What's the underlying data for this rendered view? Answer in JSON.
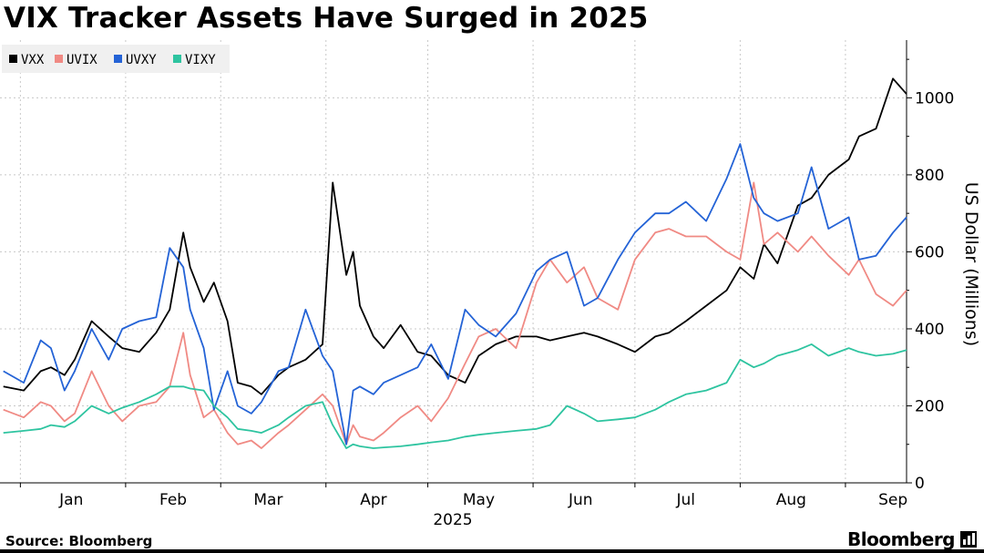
{
  "title": "VIX Tracker Assets Have Surged in 2025",
  "source": "Source: Bloomberg",
  "brand": "Bloomberg",
  "chart_data": {
    "type": "line",
    "ylabel": "US Dollar (Millions)",
    "ylim": [
      0,
      1150
    ],
    "yticks": [
      0,
      200,
      400,
      600,
      800,
      1000
    ],
    "xlim": [
      "2024-12-26",
      "2025-09-19"
    ],
    "month_labels": [
      {
        "label": "Jan",
        "date": "2025-01-16"
      },
      {
        "label": "Feb",
        "date": "2025-02-15"
      },
      {
        "label": "Mar",
        "date": "2025-03-15"
      },
      {
        "label": "Apr",
        "date": "2025-04-15"
      },
      {
        "label": "May",
        "date": "2025-05-16"
      },
      {
        "label": "Jun",
        "date": "2025-06-15"
      },
      {
        "label": "Jul",
        "date": "2025-07-16"
      },
      {
        "label": "Aug",
        "date": "2025-08-16"
      },
      {
        "label": "Sep",
        "date": "2025-09-15"
      }
    ],
    "year_label": "2025",
    "legend_position": "top-left",
    "grid": true,
    "series": [
      {
        "name": "VXX",
        "color": "#000000",
        "x": [
          "2024-12-27",
          "2025-01-02",
          "2025-01-07",
          "2025-01-10",
          "2025-01-14",
          "2025-01-17",
          "2025-01-22",
          "2025-01-27",
          "2025-01-31",
          "2025-02-05",
          "2025-02-10",
          "2025-02-14",
          "2025-02-18",
          "2025-02-20",
          "2025-02-24",
          "2025-02-27",
          "2025-03-03",
          "2025-03-06",
          "2025-03-10",
          "2025-03-13",
          "2025-03-18",
          "2025-03-21",
          "2025-03-26",
          "2025-03-31",
          "2025-04-03",
          "2025-04-07",
          "2025-04-09",
          "2025-04-11",
          "2025-04-15",
          "2025-04-18",
          "2025-04-23",
          "2025-04-28",
          "2025-05-02",
          "2025-05-07",
          "2025-05-12",
          "2025-05-16",
          "2025-05-21",
          "2025-05-27",
          "2025-06-02",
          "2025-06-06",
          "2025-06-11",
          "2025-06-16",
          "2025-06-20",
          "2025-06-26",
          "2025-07-01",
          "2025-07-07",
          "2025-07-11",
          "2025-07-16",
          "2025-07-22",
          "2025-07-28",
          "2025-08-01",
          "2025-08-05",
          "2025-08-08",
          "2025-08-12",
          "2025-08-18",
          "2025-08-22",
          "2025-08-27",
          "2025-09-02",
          "2025-09-05",
          "2025-09-10",
          "2025-09-15",
          "2025-09-19"
        ],
        "values": [
          250,
          240,
          290,
          300,
          280,
          320,
          420,
          380,
          350,
          340,
          390,
          450,
          650,
          560,
          470,
          520,
          420,
          260,
          250,
          230,
          280,
          300,
          320,
          360,
          780,
          540,
          600,
          460,
          380,
          350,
          410,
          340,
          330,
          280,
          260,
          330,
          360,
          380,
          380,
          370,
          380,
          390,
          380,
          360,
          340,
          380,
          390,
          420,
          460,
          500,
          560,
          530,
          620,
          570,
          720,
          740,
          800,
          840,
          900,
          920,
          1050,
          1010
        ]
      },
      {
        "name": "UVIX",
        "color": "#f08a84",
        "x": [
          "2024-12-27",
          "2025-01-02",
          "2025-01-07",
          "2025-01-10",
          "2025-01-14",
          "2025-01-17",
          "2025-01-22",
          "2025-01-27",
          "2025-01-31",
          "2025-02-05",
          "2025-02-10",
          "2025-02-14",
          "2025-02-18",
          "2025-02-20",
          "2025-02-24",
          "2025-02-27",
          "2025-03-03",
          "2025-03-06",
          "2025-03-10",
          "2025-03-13",
          "2025-03-18",
          "2025-03-21",
          "2025-03-26",
          "2025-03-31",
          "2025-04-03",
          "2025-04-07",
          "2025-04-09",
          "2025-04-11",
          "2025-04-15",
          "2025-04-18",
          "2025-04-23",
          "2025-04-28",
          "2025-05-02",
          "2025-05-07",
          "2025-05-12",
          "2025-05-16",
          "2025-05-21",
          "2025-05-27",
          "2025-06-02",
          "2025-06-06",
          "2025-06-11",
          "2025-06-16",
          "2025-06-20",
          "2025-06-26",
          "2025-07-01",
          "2025-07-07",
          "2025-07-11",
          "2025-07-16",
          "2025-07-22",
          "2025-07-28",
          "2025-08-01",
          "2025-08-05",
          "2025-08-08",
          "2025-08-12",
          "2025-08-18",
          "2025-08-22",
          "2025-08-27",
          "2025-09-02",
          "2025-09-05",
          "2025-09-10",
          "2025-09-15",
          "2025-09-19"
        ],
        "values": [
          190,
          170,
          210,
          200,
          160,
          180,
          290,
          200,
          160,
          200,
          210,
          250,
          390,
          280,
          170,
          190,
          130,
          100,
          110,
          90,
          130,
          150,
          190,
          230,
          200,
          100,
          150,
          120,
          110,
          130,
          170,
          200,
          160,
          220,
          310,
          380,
          400,
          350,
          520,
          580,
          520,
          560,
          480,
          450,
          580,
          650,
          660,
          640,
          640,
          600,
          580,
          780,
          620,
          650,
          600,
          640,
          590,
          540,
          580,
          490,
          460,
          500
        ]
      },
      {
        "name": "UVXY",
        "color": "#2463d6",
        "x": [
          "2024-12-27",
          "2025-01-02",
          "2025-01-07",
          "2025-01-10",
          "2025-01-14",
          "2025-01-17",
          "2025-01-22",
          "2025-01-27",
          "2025-01-31",
          "2025-02-05",
          "2025-02-10",
          "2025-02-14",
          "2025-02-18",
          "2025-02-20",
          "2025-02-24",
          "2025-02-27",
          "2025-03-03",
          "2025-03-06",
          "2025-03-10",
          "2025-03-13",
          "2025-03-18",
          "2025-03-21",
          "2025-03-26",
          "2025-03-31",
          "2025-04-03",
          "2025-04-07",
          "2025-04-09",
          "2025-04-11",
          "2025-04-15",
          "2025-04-18",
          "2025-04-23",
          "2025-04-28",
          "2025-05-02",
          "2025-05-07",
          "2025-05-12",
          "2025-05-16",
          "2025-05-21",
          "2025-05-27",
          "2025-06-02",
          "2025-06-06",
          "2025-06-11",
          "2025-06-16",
          "2025-06-20",
          "2025-06-26",
          "2025-07-01",
          "2025-07-07",
          "2025-07-11",
          "2025-07-16",
          "2025-07-22",
          "2025-07-28",
          "2025-08-01",
          "2025-08-05",
          "2025-08-08",
          "2025-08-12",
          "2025-08-18",
          "2025-08-22",
          "2025-08-27",
          "2025-09-02",
          "2025-09-05",
          "2025-09-10",
          "2025-09-15",
          "2025-09-19"
        ],
        "values": [
          290,
          260,
          370,
          350,
          240,
          290,
          400,
          320,
          400,
          420,
          430,
          610,
          560,
          450,
          350,
          190,
          290,
          200,
          180,
          210,
          290,
          300,
          450,
          330,
          290,
          100,
          240,
          250,
          230,
          260,
          280,
          300,
          360,
          270,
          450,
          410,
          380,
          440,
          550,
          580,
          600,
          460,
          480,
          580,
          650,
          700,
          700,
          730,
          680,
          790,
          880,
          740,
          700,
          680,
          700,
          820,
          660,
          690,
          580,
          590,
          650,
          690
        ]
      },
      {
        "name": "VIXY",
        "color": "#2ec4a0",
        "x": [
          "2024-12-27",
          "2025-01-02",
          "2025-01-07",
          "2025-01-10",
          "2025-01-14",
          "2025-01-17",
          "2025-01-22",
          "2025-01-27",
          "2025-01-31",
          "2025-02-05",
          "2025-02-10",
          "2025-02-14",
          "2025-02-18",
          "2025-02-20",
          "2025-02-24",
          "2025-02-27",
          "2025-03-03",
          "2025-03-06",
          "2025-03-10",
          "2025-03-13",
          "2025-03-18",
          "2025-03-21",
          "2025-03-26",
          "2025-03-31",
          "2025-04-03",
          "2025-04-07",
          "2025-04-09",
          "2025-04-11",
          "2025-04-15",
          "2025-04-18",
          "2025-04-23",
          "2025-04-28",
          "2025-05-02",
          "2025-05-07",
          "2025-05-12",
          "2025-05-16",
          "2025-05-21",
          "2025-05-27",
          "2025-06-02",
          "2025-06-06",
          "2025-06-11",
          "2025-06-16",
          "2025-06-20",
          "2025-06-26",
          "2025-07-01",
          "2025-07-07",
          "2025-07-11",
          "2025-07-16",
          "2025-07-22",
          "2025-07-28",
          "2025-08-01",
          "2025-08-05",
          "2025-08-08",
          "2025-08-12",
          "2025-08-18",
          "2025-08-22",
          "2025-08-27",
          "2025-09-02",
          "2025-09-05",
          "2025-09-10",
          "2025-09-15",
          "2025-09-19"
        ],
        "values": [
          130,
          135,
          140,
          150,
          145,
          160,
          200,
          180,
          195,
          210,
          230,
          250,
          250,
          245,
          240,
          200,
          170,
          140,
          135,
          130,
          150,
          170,
          200,
          210,
          150,
          90,
          100,
          95,
          90,
          92,
          95,
          100,
          105,
          110,
          120,
          125,
          130,
          135,
          140,
          150,
          200,
          180,
          160,
          165,
          170,
          190,
          210,
          230,
          240,
          260,
          320,
          300,
          310,
          330,
          345,
          360,
          330,
          350,
          340,
          330,
          335,
          345
        ]
      }
    ]
  }
}
